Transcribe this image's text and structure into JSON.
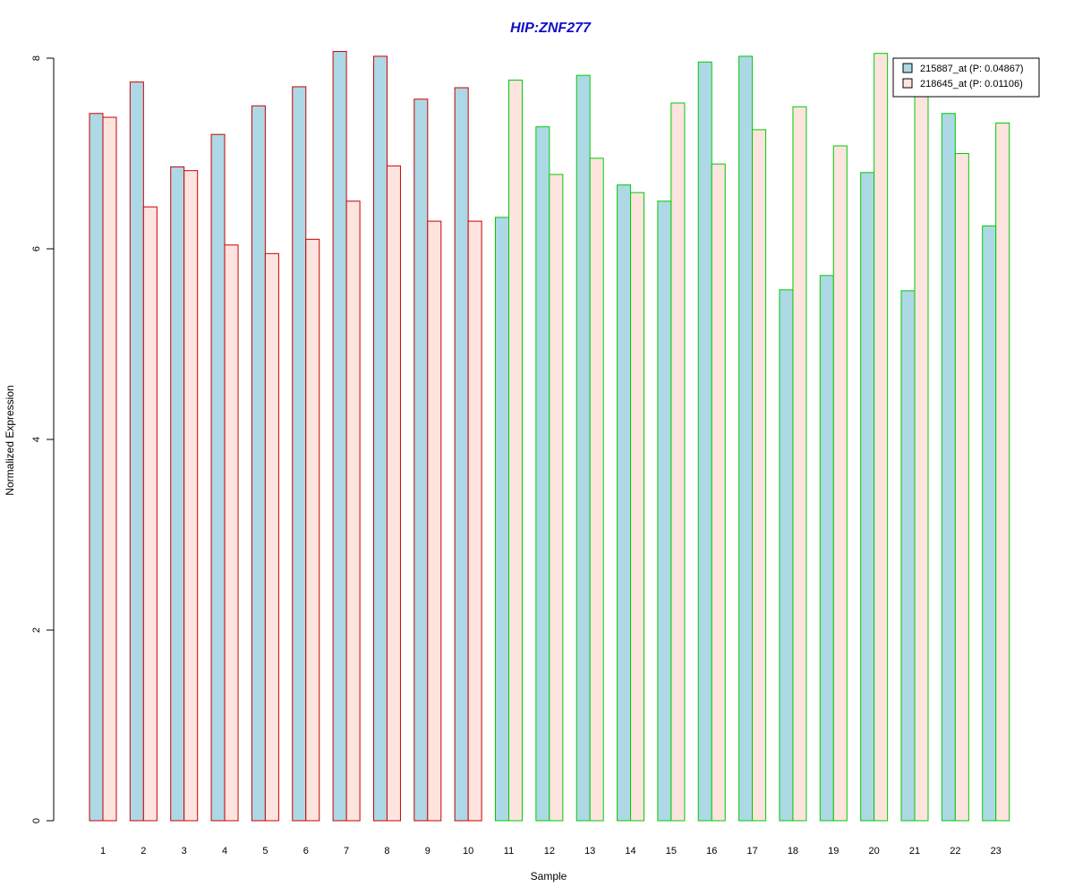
{
  "chart_data": {
    "type": "bar",
    "title": "HIP:ZNF277",
    "xlabel": "Sample",
    "ylabel": "Normalized Expression",
    "ylim": [
      0,
      8
    ],
    "yticks": [
      0,
      2,
      4,
      6,
      8
    ],
    "grid": false,
    "legend_position": "top-right",
    "categories": [
      "1",
      "2",
      "3",
      "4",
      "5",
      "6",
      "7",
      "8",
      "9",
      "10",
      "11",
      "12",
      "13",
      "14",
      "15",
      "16",
      "17",
      "18",
      "19",
      "20",
      "21",
      "22",
      "23"
    ],
    "groups": [
      {
        "samples": [
          "1",
          "2",
          "3",
          "4",
          "5",
          "6",
          "7",
          "8",
          "9",
          "10"
        ],
        "border_color": "#cc0000"
      },
      {
        "samples": [
          "11",
          "12",
          "13",
          "14",
          "15",
          "16",
          "17",
          "18",
          "19",
          "20",
          "21",
          "22",
          "23"
        ],
        "border_color": "#00cc00"
      }
    ],
    "series": [
      {
        "name": "215887_at (P: 0.04867)",
        "fill": "#add8e6",
        "values": [
          7.42,
          7.75,
          6.86,
          7.2,
          7.5,
          7.7,
          8.07,
          8.02,
          7.57,
          7.69,
          6.33,
          7.28,
          7.82,
          6.67,
          6.5,
          7.96,
          8.02,
          5.57,
          5.72,
          6.8,
          5.56,
          7.42,
          6.24
        ]
      },
      {
        "name": "218645_at (P: 0.01106)",
        "fill": "#fde4df",
        "values": [
          7.38,
          6.44,
          6.82,
          6.04,
          5.95,
          6.1,
          6.5,
          6.87,
          6.29,
          6.29,
          7.77,
          6.78,
          6.95,
          6.59,
          7.53,
          6.89,
          7.25,
          7.49,
          7.08,
          8.05,
          7.62,
          7.0,
          7.32
        ]
      }
    ]
  }
}
